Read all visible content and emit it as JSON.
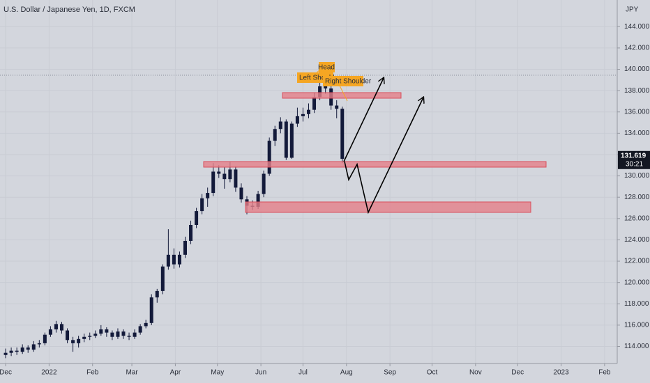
{
  "chart_data": {
    "type": "candlestick",
    "title": "U.S. Dollar / Japanese Yen, 1D, FXCM",
    "y_axis_label": "JPY",
    "annotations": {
      "head": "Head",
      "left_shoulder": "Left Shoulder",
      "right_shoulder": "Right Shoulder"
    },
    "last_price": 131.619,
    "countdown": "30:21",
    "up_color": "#131a3a",
    "down_color": "#131a3a",
    "grid": true,
    "xlim": [
      -4,
      436
    ],
    "ylim": [
      112.4,
      146.5
    ],
    "xticks": [
      {
        "value": 0,
        "label": "Dec"
      },
      {
        "value": 31,
        "label": "2022"
      },
      {
        "value": 62,
        "label": "Feb"
      },
      {
        "value": 90,
        "label": "Mar"
      },
      {
        "value": 121,
        "label": "Apr"
      },
      {
        "value": 151,
        "label": "May"
      },
      {
        "value": 182,
        "label": "Jun"
      },
      {
        "value": 212,
        "label": "Jul"
      },
      {
        "value": 243,
        "label": "Aug"
      },
      {
        "value": 274,
        "label": "Sep"
      },
      {
        "value": 304,
        "label": "Oct"
      },
      {
        "value": 335,
        "label": "Nov"
      },
      {
        "value": 365,
        "label": "Dec"
      },
      {
        "value": 396,
        "label": "2023"
      },
      {
        "value": 427,
        "label": "Feb"
      }
    ],
    "yticks": [
      {
        "value": 114,
        "label": "114.000"
      },
      {
        "value": 116,
        "label": "116.000"
      },
      {
        "value": 118,
        "label": "118.000"
      },
      {
        "value": 120,
        "label": "120.000"
      },
      {
        "value": 122,
        "label": "122.000"
      },
      {
        "value": 124,
        "label": "124.000"
      },
      {
        "value": 126,
        "label": "126.000"
      },
      {
        "value": 128,
        "label": "128.000"
      },
      {
        "value": 130,
        "label": "130.000"
      },
      {
        "value": 132,
        "label": "132.000"
      },
      {
        "value": 134,
        "label": "134.000"
      },
      {
        "value": 136,
        "label": "136.000"
      },
      {
        "value": 138,
        "label": "138.000"
      },
      {
        "value": 140,
        "label": "140.000"
      },
      {
        "value": 142,
        "label": "142.000"
      },
      {
        "value": 144,
        "label": "144.000"
      }
    ],
    "x": [
      0,
      4,
      8,
      12,
      16,
      20,
      24,
      28,
      32,
      36,
      40,
      44,
      48,
      52,
      56,
      60,
      64,
      68,
      72,
      76,
      80,
      84,
      88,
      92,
      96,
      100,
      104,
      108,
      112,
      116,
      120,
      124,
      128,
      132,
      136,
      140,
      144,
      148,
      152,
      156,
      160,
      164,
      168,
      172,
      176,
      180,
      184,
      188,
      192,
      196,
      200,
      204,
      208,
      212,
      216,
      220,
      224,
      228,
      232,
      236,
      240
    ],
    "ohlc": [
      [
        113.2,
        113.8,
        112.9,
        113.4
      ],
      [
        113.4,
        113.9,
        113.1,
        113.6
      ],
      [
        113.6,
        113.9,
        113.2,
        113.5
      ],
      [
        113.5,
        114.2,
        113.3,
        113.9
      ],
      [
        113.9,
        114.1,
        113.4,
        113.7
      ],
      [
        113.7,
        114.5,
        113.5,
        114.2
      ],
      [
        114.2,
        114.6,
        113.9,
        114.3
      ],
      [
        114.3,
        115.3,
        114.1,
        115.1
      ],
      [
        115.1,
        115.9,
        114.9,
        115.6
      ],
      [
        115.6,
        116.4,
        115.3,
        116.1
      ],
      [
        116.1,
        116.3,
        115.2,
        115.5
      ],
      [
        115.5,
        115.7,
        114.3,
        114.6
      ],
      [
        114.6,
        114.9,
        113.5,
        114.3
      ],
      [
        114.3,
        115.0,
        113.9,
        114.7
      ],
      [
        114.7,
        115.2,
        114.4,
        114.9
      ],
      [
        114.9,
        115.3,
        114.6,
        115.0
      ],
      [
        115.0,
        115.5,
        114.8,
        115.2
      ],
      [
        115.2,
        116.0,
        115.0,
        115.6
      ],
      [
        115.6,
        115.8,
        114.9,
        115.3
      ],
      [
        115.3,
        115.5,
        114.6,
        114.9
      ],
      [
        114.9,
        115.7,
        114.7,
        115.4
      ],
      [
        115.4,
        115.6,
        114.7,
        115.0
      ],
      [
        115.0,
        115.3,
        114.6,
        114.9
      ],
      [
        114.9,
        115.6,
        114.7,
        115.3
      ],
      [
        115.3,
        116.1,
        115.1,
        115.9
      ],
      [
        115.9,
        116.5,
        115.7,
        116.2
      ],
      [
        116.2,
        118.9,
        116.0,
        118.6
      ],
      [
        118.6,
        119.4,
        118.1,
        119.2
      ],
      [
        119.2,
        121.7,
        118.9,
        121.5
      ],
      [
        121.5,
        125.0,
        121.2,
        122.6
      ],
      [
        122.6,
        123.2,
        121.3,
        121.7
      ],
      [
        121.7,
        122.9,
        121.4,
        122.6
      ],
      [
        122.6,
        124.3,
        122.3,
        123.9
      ],
      [
        123.9,
        125.8,
        123.6,
        125.4
      ],
      [
        125.4,
        127.0,
        125.1,
        126.7
      ],
      [
        126.7,
        128.3,
        126.4,
        127.9
      ],
      [
        127.9,
        128.9,
        127.1,
        128.4
      ],
      [
        128.4,
        131.2,
        128.1,
        130.4
      ],
      [
        130.4,
        131.0,
        129.8,
        130.2
      ],
      [
        130.2,
        130.8,
        128.8,
        129.7
      ],
      [
        129.7,
        131.3,
        129.4,
        130.6
      ],
      [
        130.6,
        130.9,
        128.5,
        128.9
      ],
      [
        128.9,
        129.3,
        127.5,
        127.8
      ],
      [
        127.8,
        128.1,
        126.4,
        127.2
      ],
      [
        127.2,
        127.7,
        126.8,
        127.1
      ],
      [
        127.1,
        128.6,
        126.9,
        128.3
      ],
      [
        128.3,
        130.5,
        128.0,
        130.2
      ],
      [
        130.2,
        133.6,
        130.0,
        133.3
      ],
      [
        133.3,
        134.7,
        132.8,
        134.4
      ],
      [
        134.4,
        135.5,
        134.0,
        135.1
      ],
      [
        135.1,
        135.3,
        131.5,
        131.7
      ],
      [
        131.7,
        135.1,
        131.6,
        134.9
      ],
      [
        134.9,
        136.4,
        134.6,
        135.6
      ],
      [
        135.6,
        136.4,
        135.1,
        135.8
      ],
      [
        135.8,
        136.8,
        135.4,
        136.2
      ],
      [
        136.2,
        137.8,
        135.9,
        137.4
      ],
      [
        137.4,
        139.2,
        137.1,
        138.4
      ],
      [
        138.4,
        138.9,
        137.7,
        138.2
      ],
      [
        138.2,
        138.4,
        136.2,
        136.6
      ],
      [
        136.6,
        137.1,
        135.4,
        136.3
      ],
      [
        136.3,
        136.5,
        131.2,
        131.6
      ]
    ]
  }
}
